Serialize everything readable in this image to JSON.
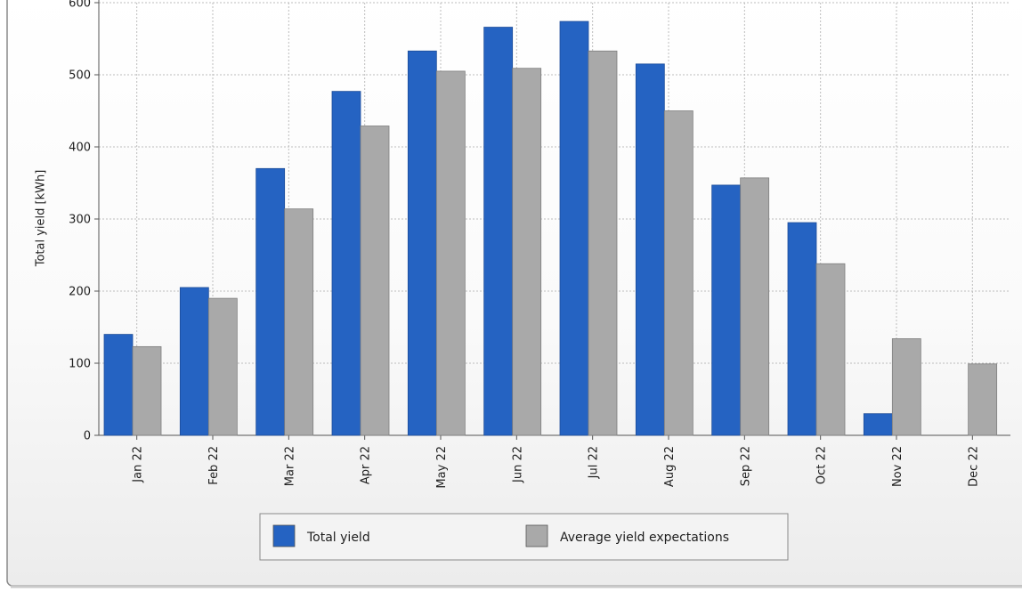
{
  "chart_data": {
    "type": "bar",
    "title": "",
    "xlabel": "",
    "ylabel": "Total yield [kWh]",
    "ylim": [
      0,
      600
    ],
    "yticks": [
      0,
      100,
      200,
      300,
      400,
      500,
      600
    ],
    "grid": true,
    "legend_position": "bottom-center",
    "categories": [
      "Jan 22",
      "Feb 22",
      "Mar 22",
      "Apr 22",
      "May 22",
      "Jun 22",
      "Jul 22",
      "Aug 22",
      "Sep 22",
      "Oct 22",
      "Nov 22",
      "Dec 22"
    ],
    "series": [
      {
        "name": "Total yield",
        "color": "#2563c2",
        "values": [
          140,
          205,
          370,
          477,
          533,
          566,
          574,
          515,
          347,
          295,
          30,
          null
        ]
      },
      {
        "name": "Average yield expectations",
        "color": "#a9a9a9",
        "values": [
          123,
          190,
          314,
          429,
          505,
          509,
          533,
          450,
          357,
          238,
          134,
          99
        ]
      }
    ]
  }
}
